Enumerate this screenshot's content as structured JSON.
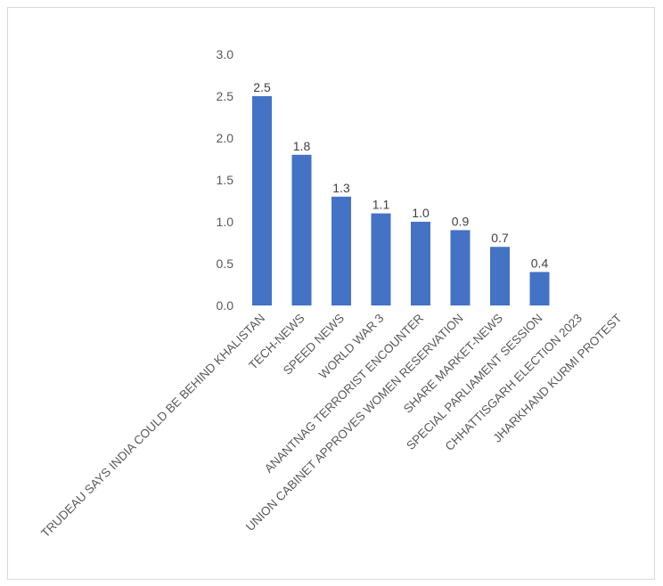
{
  "chart_data": {
    "type": "bar",
    "title": "",
    "xlabel": "",
    "ylabel": "",
    "ylim": [
      0,
      3.0
    ],
    "yticks": [
      "0.0",
      "0.5",
      "1.0",
      "1.5",
      "2.0",
      "2.5",
      "3.0"
    ],
    "categories": [
      "TRUDEAU SAYS INDIA COULD BE BEHIND KHALISTAN",
      "TECH-NEWS",
      "SPEED NEWS",
      "WORLD WAR 3",
      "ANANTNAG TERRORIST ENCOUNTER",
      "UNION CABINET APPROVES WOMEN RESERVATION",
      "SHARE MARKET-NEWS",
      "SPECIAL PARLIAMENT SESSION",
      "CHHATTISGARH ELECTION 2023",
      "JHARKHAND KURMI PROTEST"
    ],
    "values": [
      2.5,
      1.8,
      1.3,
      1.1,
      1.0,
      0.9,
      0.7,
      0.4,
      null,
      null
    ],
    "data_labels": [
      "2.5",
      "1.8",
      "1.3",
      "1.1",
      "1.0",
      "0.9",
      "0.7",
      "0.4",
      "",
      ""
    ],
    "bar_color": "#4472c4",
    "grid": false,
    "legend": "none"
  }
}
